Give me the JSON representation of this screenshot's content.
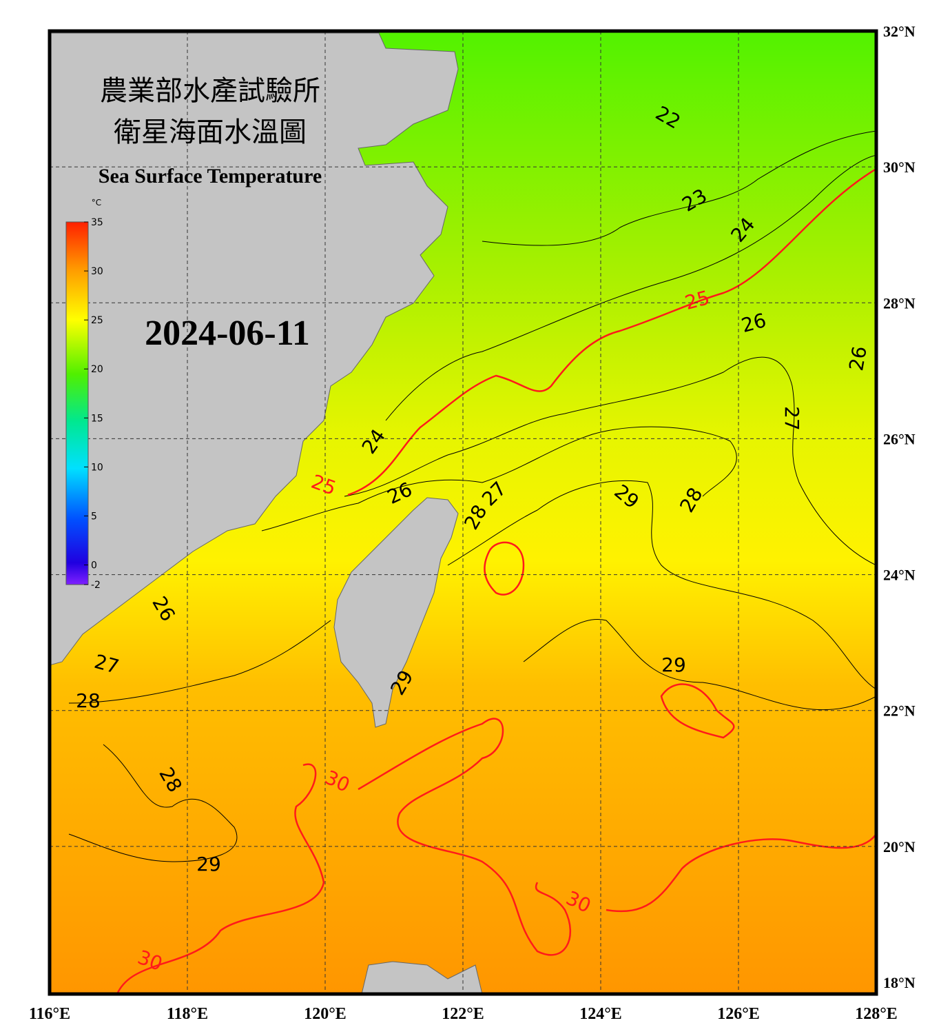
{
  "header": {
    "title_zh_1": "農業部水產試驗所",
    "title_zh_2": "衛星海面水溫圖",
    "title_en": "Sea Surface Temperature",
    "date": "2024-06-11"
  },
  "colorbar": {
    "unit": "°C",
    "ticks": [
      35,
      30,
      25,
      20,
      15,
      10,
      5,
      0,
      -2
    ]
  },
  "lon_labels": [
    "116°E",
    "118°E",
    "120°E",
    "122°E",
    "124°E",
    "126°E",
    "128°E"
  ],
  "lat_labels": [
    "32°N",
    "30°N",
    "28°N",
    "26°N",
    "24°N",
    "22°N",
    "20°N",
    "18°N"
  ],
  "contour_labels": [
    22,
    23,
    24,
    25,
    26,
    26,
    27,
    24,
    25,
    26,
    27,
    28,
    29,
    28,
    26,
    27,
    28,
    29,
    29,
    30,
    28,
    29,
    30,
    30
  ]
}
